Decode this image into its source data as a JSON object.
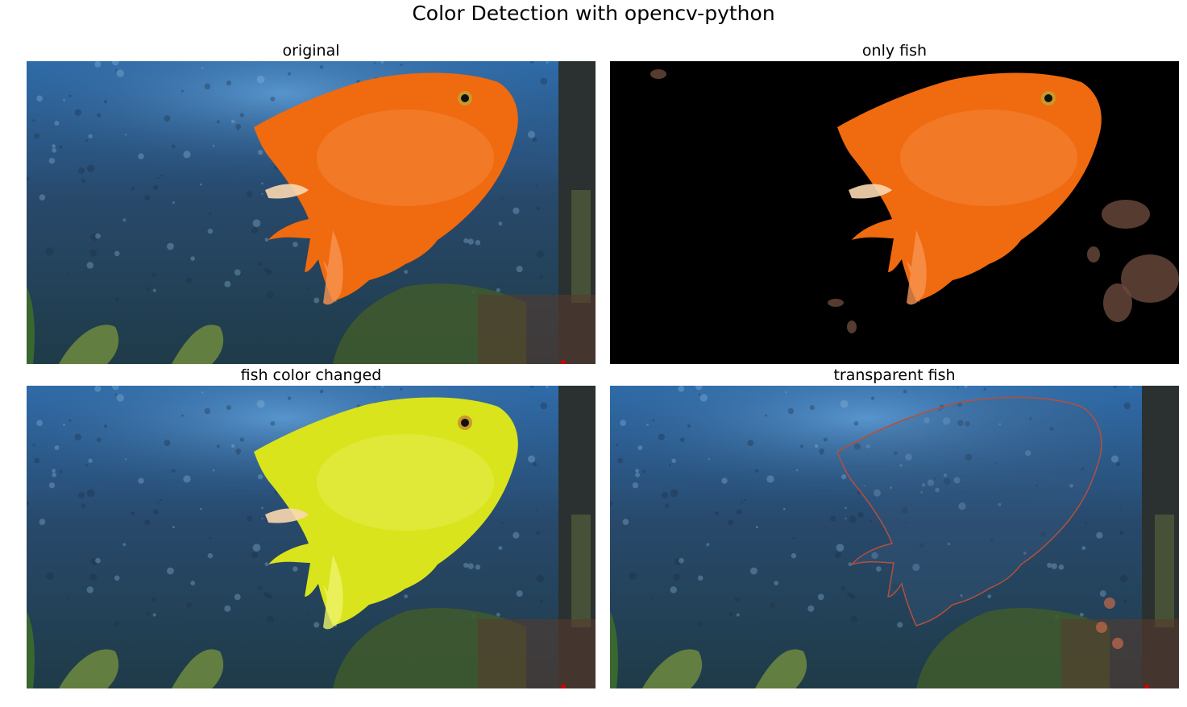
{
  "figure": {
    "title": "Color Detection with opencv-python"
  },
  "panels": [
    {
      "title": "original",
      "scene": "aquarium",
      "fish_color": "#f06a10",
      "fish_highlight": "#f79450"
    },
    {
      "title": "only fish",
      "scene": "masked",
      "fish_color": "#f06a10",
      "fish_highlight": "#f79450"
    },
    {
      "title": "fish color changed",
      "scene": "aquarium",
      "fish_color": "#d9e41c",
      "fish_highlight": "#eef36a"
    },
    {
      "title": "transparent fish",
      "scene": "transparent",
      "fish_color": "#3b5f86",
      "fish_highlight": "#c46a4a"
    }
  ],
  "colors": {
    "water_top": "#2f6fb0",
    "water_mid": "#28496b",
    "water_bottom": "#1f3b48",
    "plants": "#3f5a2c",
    "mask_bg": "#000000"
  }
}
